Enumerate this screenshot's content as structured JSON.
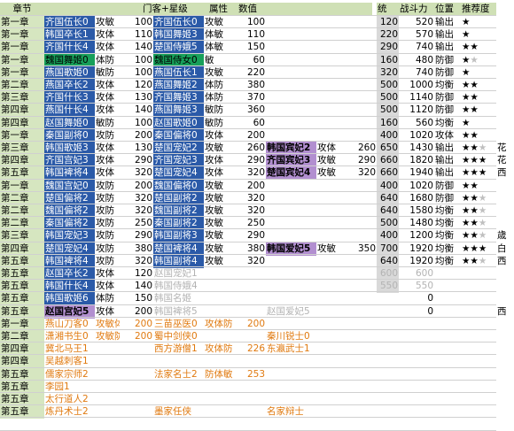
{
  "headers": {
    "chapter": "章节",
    "generals_title": "门客+星级",
    "attr": "属性",
    "value": "数值",
    "tong": "统",
    "power": "战斗力",
    "position": "位置",
    "rec": "推荐度"
  },
  "rows": [
    {
      "ch": "第一章",
      "g1": "齐国伍长0",
      "c1": "blue",
      "a1": "攻敏",
      "v1": "100",
      "g2": "齐国伍长0",
      "c2": "blue",
      "a2": "攻敏",
      "v2": "100",
      "g3": "",
      "c3": "",
      "a3": "",
      "v3": "",
      "tong": "120",
      "pow": "520",
      "pos": "输出",
      "stars": "★",
      "gs": ""
    },
    {
      "ch": "第一章",
      "g1": "韩国卒长1",
      "c1": "blue",
      "a1": "攻体",
      "v1": "110",
      "g2": "韩国舞姬3",
      "c2": "blue",
      "a2": "体敏",
      "v2": "110",
      "g3": "",
      "c3": "",
      "a3": "",
      "v3": "",
      "tong": "220",
      "pow": "570",
      "pos": "输出",
      "stars": "★",
      "gs": ""
    },
    {
      "ch": "第一章",
      "g1": "齐国什长4",
      "c1": "blue",
      "a1": "攻体",
      "v1": "140",
      "g2": "楚国侍娥5",
      "c2": "blue",
      "a2": "体敏",
      "v2": "150",
      "g3": "",
      "c3": "",
      "a3": "",
      "v3": "",
      "tong": "290",
      "pow": "740",
      "pos": "输出",
      "stars": "★★",
      "gs": ""
    },
    {
      "ch": "第一章",
      "g1": "魏国舞姬0",
      "c1": "green",
      "a1": "体防",
      "v1": "100",
      "g2": "魏国侍女0",
      "c2": "green",
      "a2": "敏",
      "v2": "60",
      "g3": "",
      "c3": "",
      "a3": "",
      "v3": "",
      "tong": "160",
      "pow": "480",
      "pos": "防御",
      "stars": "★",
      "gs": "★"
    },
    {
      "ch": "第一章",
      "g1": "燕国歌姬0",
      "c1": "blue",
      "a1": "敏防",
      "v1": "100",
      "g2": "燕国伍长1",
      "c2": "blue",
      "a2": "攻敏",
      "v2": "220",
      "g3": "",
      "c3": "",
      "a3": "",
      "v3": "",
      "tong": "320",
      "pow": "740",
      "pos": "防御",
      "stars": "★",
      "gs": ""
    },
    {
      "ch": "第二章",
      "g1": "燕国卒长2",
      "c1": "blue",
      "a1": "攻体",
      "v1": "120",
      "g2": "燕国舞姬2",
      "c2": "blue",
      "a2": "体防",
      "v2": "380",
      "g3": "",
      "c3": "",
      "a3": "",
      "v3": "",
      "tong": "500",
      "pow": "1000",
      "pos": "均衡",
      "stars": "★★",
      "gs": ""
    },
    {
      "ch": "第三章",
      "g1": "齐国什长3",
      "c1": "blue",
      "a1": "攻体",
      "v1": "130",
      "g2": "齐国舞姬3",
      "c2": "blue",
      "a2": "体防",
      "v2": "370",
      "g3": "",
      "c3": "",
      "a3": "",
      "v3": "",
      "tong": "500",
      "pow": "1140",
      "pos": "防御",
      "stars": "★★",
      "gs": ""
    },
    {
      "ch": "第四章",
      "g1": "燕国什长4",
      "c1": "blue",
      "a1": "攻体",
      "v1": "140",
      "g2": "燕国舞姬3",
      "c2": "blue",
      "a2": "敏防",
      "v2": "360",
      "g3": "",
      "c3": "",
      "a3": "",
      "v3": "",
      "tong": "500",
      "pow": "1120",
      "pos": "防御",
      "stars": "★★",
      "gs": ""
    },
    {
      "ch": "第四章",
      "g1": "赵国舞姬0",
      "c1": "blue",
      "a1": "敏防",
      "v1": "100",
      "g2": "赵国歌姬0",
      "c2": "blue",
      "a2": "敏防",
      "v2": "60",
      "g3": "",
      "c3": "",
      "a3": "",
      "v3": "",
      "tong": "160",
      "pow": "560",
      "pos": "均衡",
      "stars": "★",
      "gs": ""
    },
    {
      "ch": "第一章",
      "g1": "秦国副将0",
      "c1": "blue",
      "a1": "攻防",
      "v1": "200",
      "g2": "秦国偏将0",
      "c2": "blue",
      "a2": "攻体",
      "v2": "200",
      "g3": "",
      "c3": "",
      "a3": "",
      "v3": "",
      "tong": "400",
      "pow": "1020",
      "pos": "攻体",
      "stars": "★★",
      "gs": ""
    },
    {
      "ch": "第三章",
      "g1": "韩国歌姬3",
      "c1": "blue",
      "a1": "攻体",
      "v1": "130",
      "g2": "楚国宠妃2",
      "c2": "blue",
      "a2": "攻敏",
      "v2": "260",
      "g3": "韩国宾妃2",
      "c3": "purple",
      "a3": "攻体",
      "v3": "260",
      "tong": "650",
      "pow": "1430",
      "pos": "输出",
      "stars": "★★",
      "gs": "★",
      "side": "花"
    },
    {
      "ch": "第四章",
      "g1": "齐国宫妃3",
      "c1": "blue",
      "a1": "攻体",
      "v1": "290",
      "g2": "齐国宠妃3",
      "c2": "blue",
      "a2": "攻体",
      "v2": "290",
      "g3": "齐国宾妃3",
      "c3": "purple",
      "a3": "攻敏",
      "v3": "290",
      "tong": "660",
      "pow": "1820",
      "pos": "输出",
      "stars": "★★★",
      "gs": "",
      "side": "花"
    },
    {
      "ch": "第五章",
      "g1": "韩国裨将4",
      "c1": "blue",
      "a1": "攻体",
      "v1": "320",
      "g2": "楚国宠妃4",
      "c2": "blue",
      "a2": "攻体",
      "v2": "320",
      "g3": "楚国宾妃4",
      "c3": "purple",
      "a3": "攻敏",
      "v3": "320",
      "tong": "660",
      "pow": "1940",
      "pos": "输出",
      "stars": "★★★",
      "gs": "",
      "side": "西"
    },
    {
      "ch": "第一章",
      "g1": "魏国宫妃0",
      "c1": "blue",
      "a1": "攻防",
      "v1": "200",
      "g2": "魏国偏将0",
      "c2": "blue",
      "a2": "攻敏",
      "v2": "200",
      "g3": "",
      "c3": "",
      "a3": "",
      "v3": "",
      "tong": "400",
      "pow": "1020",
      "pos": "防御",
      "stars": "★★",
      "gs": ""
    },
    {
      "ch": "第二章",
      "g1": "楚国偏将2",
      "c1": "blue",
      "a1": "攻防",
      "v1": "320",
      "g2": "楚国副将2",
      "c2": "blue",
      "a2": "攻敏",
      "v2": "320",
      "g3": "",
      "c3": "",
      "a3": "",
      "v3": "",
      "tong": "640",
      "pow": "1680",
      "pos": "防御",
      "stars": "★★",
      "gs": "★"
    },
    {
      "ch": "第二章",
      "g1": "魏国偏将2",
      "c1": "blue",
      "a1": "攻防",
      "v1": "320",
      "g2": "魏国副将2",
      "c2": "blue",
      "a2": "攻敏",
      "v2": "320",
      "g3": "",
      "c3": "",
      "a3": "",
      "v3": "",
      "tong": "640",
      "pow": "1580",
      "pos": "均衡",
      "stars": "★★",
      "gs": "★"
    },
    {
      "ch": "第二章",
      "g1": "秦国偏将2",
      "c1": "blue",
      "a1": "攻防",
      "v1": "250",
      "g2": "秦国副将2",
      "c2": "blue",
      "a2": "攻敏",
      "v2": "250",
      "g3": "",
      "c3": "",
      "a3": "",
      "v3": "",
      "tong": "500",
      "pow": "1480",
      "pos": "均衡",
      "stars": "★★",
      "gs": "★"
    },
    {
      "ch": "第三章",
      "g1": "韩国宠妃3",
      "c1": "blue",
      "a1": "攻防",
      "v1": "290",
      "g2": "韩国副将3",
      "c2": "blue",
      "a2": "攻敏",
      "v2": "290",
      "g3": "",
      "c3": "",
      "a3": "",
      "v3": "",
      "tong": "400",
      "pow": "1200",
      "pos": "均衡",
      "stars": "★★",
      "gs": "★",
      "side": "歳"
    },
    {
      "ch": "第四章",
      "g1": "楚国宠妃4",
      "c1": "blue",
      "a1": "攻防",
      "v1": "380",
      "g2": "楚国裨将4",
      "c2": "blue",
      "a2": "攻敏",
      "v2": "380",
      "g3": "韩国爱妃5",
      "c3": "purple",
      "a3": "攻敏",
      "v3": "350",
      "tong": "700",
      "pow": "1920",
      "pos": "均衡",
      "stars": "★★★",
      "gs": "",
      "side": "白"
    },
    {
      "ch": "第五章",
      "g1": "韩国裨将4",
      "c1": "blue",
      "a1": "攻防",
      "v1": "320",
      "g2": "韩国副将4",
      "c2": "blue",
      "a2": "攻敏",
      "v2": "320",
      "g3": "",
      "c3": "",
      "a3": "",
      "v3": "",
      "tong": "640",
      "pow": "1920",
      "pos": "均衡",
      "stars": "★★",
      "gs": "★",
      "side": "西"
    },
    {
      "ch": "第五章",
      "g1": "赵国卒长2",
      "c1": "blue",
      "a1": "攻体",
      "v1": "120",
      "g2": "赵国宠妃1",
      "c2": "gt",
      "a2": "",
      "v2": "",
      "g3": "",
      "c3": "",
      "a3": "",
      "v3": "",
      "tong": "600",
      "pow": "600",
      "pos": "",
      "stars": "",
      "gs": "",
      "faded": true
    },
    {
      "ch": "第五章",
      "g1": "韩国什长4",
      "c1": "blue",
      "a1": "攻体",
      "v1": "140",
      "g2": "韩国侍娥4",
      "c2": "gt",
      "a2": "",
      "v2": "",
      "g3": "",
      "c3": "",
      "a3": "",
      "v3": "",
      "tong": "550",
      "pow": "550",
      "pos": "",
      "stars": "",
      "gs": "",
      "faded": true
    },
    {
      "ch": "第五章",
      "g1": "韩国歌姬6",
      "c1": "blue",
      "a1": "体防",
      "v1": "150",
      "g2": "韩国名姬",
      "c2": "gt",
      "a2": "",
      "v2": "",
      "g3": "",
      "c3": "",
      "a3": "",
      "v3": "",
      "tong": "",
      "pow": "0",
      "pos": "",
      "stars": "",
      "gs": ""
    },
    {
      "ch": "第五章",
      "g1": "赵国宫妃5",
      "c1": "purple",
      "a1": "攻体",
      "v1": "200",
      "g2": "韩国裨将5",
      "c2": "gt",
      "a2": "",
      "v2": "",
      "g3": "赵国爱妃5",
      "c3": "gt",
      "a3": "",
      "v3": "",
      "tong": "",
      "pow": "0",
      "pos": "",
      "stars": "",
      "gs": "",
      "side": "西"
    },
    {
      "ch": "第一章",
      "g1": "燕山刀客0",
      "c1": "orange",
      "a1": "攻敏体",
      "v1": "200",
      "g2": "三苗巫医0",
      "c2": "orange",
      "a2": "攻体防",
      "v2": "200",
      "g3": "",
      "c3": "",
      "a3": "",
      "v3": "",
      "tong": "",
      "pow": "",
      "pos": "",
      "stars": "",
      "gs": ""
    },
    {
      "ch": "第二章",
      "g1": "潇湘书生0",
      "c1": "orange",
      "a1": "攻敏防",
      "v1": "200",
      "g2": "蜀中剑侠0",
      "c2": "orange",
      "a2": "",
      "v2": "",
      "g3": "秦川锐士0",
      "c3": "orange",
      "a3": "",
      "v3": "",
      "tong": "",
      "pow": "",
      "pos": "",
      "stars": "",
      "gs": ""
    },
    {
      "ch": "第四章",
      "g1": "冀北马王1",
      "c1": "orange",
      "a1": "",
      "v1": "",
      "g2": "西方游僧1",
      "c2": "orange",
      "a2": "攻体防",
      "v2": "226",
      "g3": "东瀛武士1",
      "c3": "orange",
      "a3": "",
      "v3": "",
      "tong": "",
      "pow": "",
      "pos": "",
      "stars": "",
      "gs": ""
    },
    {
      "ch": "第四章",
      "g1": "吴越刺客1",
      "c1": "orange",
      "a1": "",
      "v1": "",
      "g2": "",
      "c2": "",
      "a2": "",
      "v2": "",
      "g3": "",
      "c3": "",
      "a3": "",
      "v3": "",
      "tong": "",
      "pow": "",
      "pos": "",
      "stars": "",
      "gs": ""
    },
    {
      "ch": "第五章",
      "g1": "儒家宗师2",
      "c1": "orange",
      "a1": "",
      "v1": "",
      "g2": "法家名士2",
      "c2": "orange",
      "a2": "防体敏",
      "v2": "253",
      "g3": "",
      "c3": "",
      "a3": "",
      "v3": "",
      "tong": "",
      "pow": "",
      "pos": "",
      "stars": "",
      "gs": ""
    },
    {
      "ch": "第五章",
      "g1": "李园1",
      "c1": "orange",
      "a1": "",
      "v1": "",
      "g2": "",
      "c2": "",
      "a2": "",
      "v2": "",
      "g3": "",
      "c3": "",
      "a3": "",
      "v3": "",
      "tong": "",
      "pow": "",
      "pos": "",
      "stars": "",
      "gs": ""
    },
    {
      "ch": "第五章",
      "g1": "太行道人2",
      "c1": "orange",
      "a1": "",
      "v1": "",
      "g2": "",
      "c2": "",
      "a2": "",
      "v2": "",
      "g3": "",
      "c3": "",
      "a3": "",
      "v3": "",
      "tong": "",
      "pow": "",
      "pos": "",
      "stars": "",
      "gs": ""
    },
    {
      "ch": "第五章",
      "g1": "炼丹术士2",
      "c1": "orange",
      "a1": "",
      "v1": "",
      "g2": "墨家任侠",
      "c2": "orange",
      "a2": "",
      "v2": "",
      "g3": "名家辩士",
      "c3": "orange",
      "a3": "",
      "v3": "",
      "tong": "",
      "pow": "",
      "pos": "",
      "stars": "",
      "gs": ""
    }
  ]
}
